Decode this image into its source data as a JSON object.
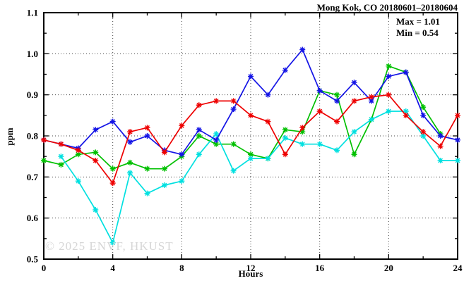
{
  "header": {
    "title": "Mong Kok, CO 20180601–20180604"
  },
  "annotation": {
    "max_label": "Max = 1.01",
    "min_label": "Min = 0.54"
  },
  "watermark": "© 2025 ENVF, HKUST",
  "chart_data": {
    "type": "line",
    "title": "Mong Kok, CO 20180601–20180604",
    "xlabel": "Hours",
    "ylabel": "ppm",
    "xlim": [
      0,
      24
    ],
    "ylim": [
      0.5,
      1.1
    ],
    "grid": true,
    "legend_position": "none",
    "marker": "asterisk",
    "x": [
      0,
      1,
      2,
      3,
      4,
      5,
      6,
      7,
      8,
      9,
      10,
      11,
      12,
      13,
      14,
      15,
      16,
      17,
      18,
      19,
      20,
      21,
      22,
      23,
      24
    ],
    "x_major_ticks": [
      0,
      4,
      8,
      12,
      16,
      20,
      24
    ],
    "x_tick_labels": [
      "0",
      "4",
      "8",
      "12",
      "16",
      "20",
      "24"
    ],
    "x_minor_ticks": [
      2,
      6,
      10,
      14,
      18,
      22
    ],
    "y_major_ticks": [
      0.5,
      0.6,
      0.7,
      0.8,
      0.9,
      1.0,
      1.1
    ],
    "y_tick_labels": [
      "0.5",
      "0.6",
      "0.7",
      "0.8",
      "0.9",
      "1.0",
      "1.1"
    ],
    "y_minor_ticks": [
      0.55,
      0.65,
      0.75,
      0.85,
      0.95,
      1.05
    ],
    "grid_x": [
      4,
      8,
      12,
      16,
      20
    ],
    "grid_y": [
      0.6,
      0.7,
      0.8,
      0.9,
      1.0
    ],
    "stats": {
      "max": 1.01,
      "min": 0.54
    },
    "series": [
      {
        "name": "series-green",
        "color": "#00c000",
        "values": [
          0.74,
          0.73,
          0.755,
          0.76,
          0.72,
          0.735,
          0.72,
          0.72,
          0.75,
          0.8,
          0.78,
          0.78,
          0.755,
          0.745,
          0.815,
          0.81,
          0.91,
          0.9,
          0.755,
          0.84,
          0.97,
          0.955,
          0.87,
          0.805,
          null
        ]
      },
      {
        "name": "series-cyan",
        "color": "#00e0e0",
        "values": [
          null,
          0.75,
          0.69,
          0.62,
          0.54,
          0.71,
          0.66,
          0.68,
          0.69,
          0.755,
          0.805,
          0.715,
          0.745,
          0.745,
          0.795,
          0.78,
          0.78,
          0.765,
          0.81,
          0.84,
          0.86,
          0.86,
          0.8,
          0.74,
          0.74
        ]
      },
      {
        "name": "series-blue",
        "color": "#1414e6",
        "values": [
          0.79,
          0.78,
          0.77,
          0.815,
          0.835,
          0.785,
          0.8,
          0.765,
          0.755,
          0.815,
          0.79,
          0.865,
          0.945,
          0.9,
          0.96,
          1.01,
          0.91,
          0.885,
          0.93,
          0.885,
          0.945,
          0.955,
          0.85,
          0.8,
          0.79
        ]
      },
      {
        "name": "series-red",
        "color": "#ee0000",
        "values": [
          0.79,
          0.78,
          0.765,
          0.74,
          0.685,
          0.81,
          0.82,
          0.76,
          0.825,
          0.875,
          0.885,
          0.885,
          0.85,
          0.835,
          0.755,
          0.82,
          0.86,
          0.835,
          0.885,
          0.895,
          0.9,
          0.85,
          0.81,
          0.775,
          0.85
        ]
      }
    ]
  }
}
